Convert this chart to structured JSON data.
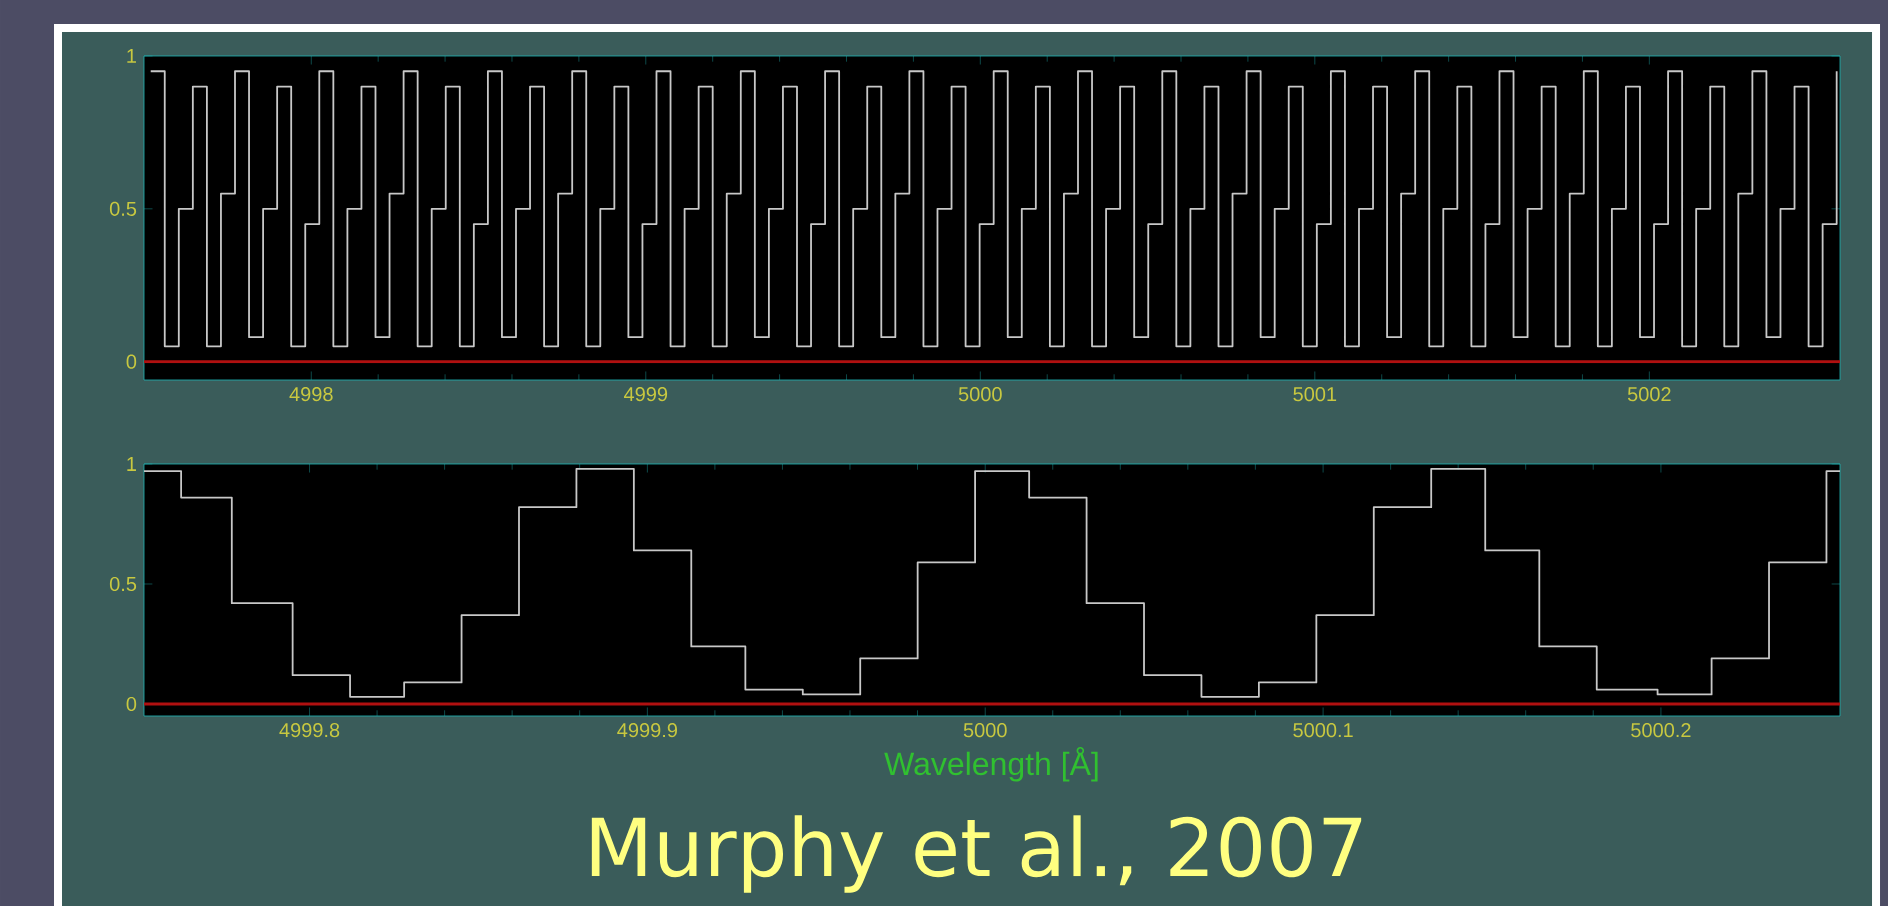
{
  "chart_data": [
    {
      "type": "step",
      "x": [
        4997.52,
        4997.562,
        4997.604,
        4997.646,
        4997.688,
        4997.73,
        4997.772,
        4997.814,
        4997.856,
        4997.898,
        4997.94,
        4997.982,
        4998.024,
        4998.066,
        4998.108,
        4998.15,
        4998.192,
        4998.234,
        4998.276,
        4998.318,
        4998.36,
        4998.402,
        4998.444,
        4998.486,
        4998.528,
        4998.57,
        4998.612,
        4998.654,
        4998.696,
        4998.738,
        4998.78,
        4998.822,
        4998.864,
        4998.906,
        4998.948,
        4998.99,
        4999.032,
        4999.074,
        4999.116,
        4999.158,
        4999.2,
        4999.242,
        4999.284,
        4999.326,
        4999.368,
        4999.41,
        4999.452,
        4999.494,
        4999.536,
        4999.578,
        4999.62,
        4999.662,
        4999.704,
        4999.746,
        4999.788,
        4999.83,
        4999.872,
        4999.914,
        4999.956,
        4999.998,
        5000.04,
        5000.082,
        5000.124,
        5000.166,
        5000.208,
        5000.25,
        5000.292,
        5000.334,
        5000.376,
        5000.418,
        5000.46,
        5000.502,
        5000.544,
        5000.586,
        5000.628,
        5000.67,
        5000.712,
        5000.754,
        5000.796,
        5000.838,
        5000.88,
        5000.922,
        5000.964,
        5001.006,
        5001.048,
        5001.09,
        5001.132,
        5001.174,
        5001.216,
        5001.258,
        5001.3,
        5001.342,
        5001.384,
        5001.426,
        5001.468,
        5001.51,
        5001.552,
        5001.594,
        5001.636,
        5001.678,
        5001.72,
        5001.762,
        5001.804,
        5001.846,
        5001.888,
        5001.93,
        5001.972,
        5002.014,
        5002.056,
        5002.098,
        5002.14,
        5002.182,
        5002.224,
        5002.266,
        5002.308,
        5002.35,
        5002.392,
        5002.434,
        5002.476,
        5002.518,
        5002.56
      ],
      "series": [
        {
          "color": "#c8c8c8",
          "values": [
            0.95,
            0.05,
            0.5,
            0.9,
            0.05,
            0.55,
            0.95,
            0.08,
            0.5,
            0.9,
            0.05,
            0.45,
            0.95,
            0.05,
            0.5,
            0.9,
            0.08,
            0.55,
            0.95,
            0.05,
            0.5,
            0.9,
            0.05,
            0.45,
            0.95,
            0.08,
            0.5,
            0.9,
            0.05,
            0.55,
            0.95,
            0.05,
            0.5,
            0.9,
            0.08,
            0.45,
            0.95,
            0.05,
            0.5,
            0.9,
            0.05,
            0.55,
            0.95,
            0.08,
            0.5,
            0.9,
            0.05,
            0.45,
            0.95,
            0.05,
            0.5,
            0.9,
            0.08,
            0.55,
            0.95,
            0.05,
            0.5,
            0.9,
            0.05,
            0.45,
            0.95,
            0.08,
            0.5,
            0.9,
            0.05,
            0.55,
            0.95,
            0.05,
            0.5,
            0.9,
            0.08,
            0.45,
            0.95,
            0.05,
            0.5,
            0.9,
            0.05,
            0.55,
            0.95,
            0.08,
            0.5,
            0.9,
            0.05,
            0.45,
            0.95,
            0.05,
            0.5,
            0.9,
            0.08,
            0.55,
            0.95,
            0.05,
            0.5,
            0.9,
            0.05,
            0.45,
            0.95,
            0.08,
            0.5,
            0.9,
            0.05,
            0.55,
            0.95,
            0.05,
            0.5,
            0.9,
            0.08,
            0.45,
            0.95,
            0.05,
            0.5,
            0.9,
            0.05,
            0.55,
            0.95,
            0.08,
            0.5,
            0.9,
            0.05,
            0.45,
            0.95
          ]
        }
      ],
      "xlim": [
        4997.5,
        5002.57
      ],
      "ylim": [
        -0.06,
        1
      ],
      "xticks": [
        4998,
        4999,
        5000,
        5001,
        5002
      ],
      "yticks": [
        0,
        0.5,
        1
      ],
      "ref_lines": [
        {
          "axis": "y",
          "value": 0,
          "color": "#b01010"
        }
      ]
    },
    {
      "type": "step",
      "xlabel": "Wavelength [Å]",
      "x": [
        4999.751,
        4999.762,
        4999.777,
        4999.795,
        4999.812,
        4999.828,
        4999.845,
        4999.862,
        4999.879,
        4999.896,
        4999.913,
        4999.929,
        4999.946,
        4999.963,
        4999.98,
        4999.997,
        5000.013,
        5000.03,
        5000.047,
        5000.064,
        5000.081,
        5000.098,
        5000.115,
        5000.132,
        5000.148,
        5000.164,
        5000.181,
        5000.199,
        5000.215,
        5000.232,
        5000.249,
        5000.253
      ],
      "series": [
        {
          "color": "#c8c8c8",
          "values": [
            0.97,
            0.86,
            0.42,
            0.12,
            0.03,
            0.09,
            0.37,
            0.82,
            0.98,
            0.64,
            0.24,
            0.06,
            0.04,
            0.19,
            0.59,
            0.97,
            0.86,
            0.42,
            0.12,
            0.03,
            0.09,
            0.37,
            0.82,
            0.98,
            0.64,
            0.24,
            0.06,
            0.04,
            0.19,
            0.59,
            0.97,
            0.97
          ]
        }
      ],
      "xlim": [
        4999.751,
        5000.253
      ],
      "ylim": [
        -0.05,
        1
      ],
      "xticks": [
        4999.8,
        4999.9,
        5000,
        5000.1,
        5000.2
      ],
      "yticks": [
        0,
        0.5,
        1
      ],
      "ref_lines": [
        {
          "axis": "y",
          "value": 0,
          "color": "#b01010"
        }
      ],
      "annotations": [
        "Murphy et al., 2007"
      ]
    }
  ]
}
